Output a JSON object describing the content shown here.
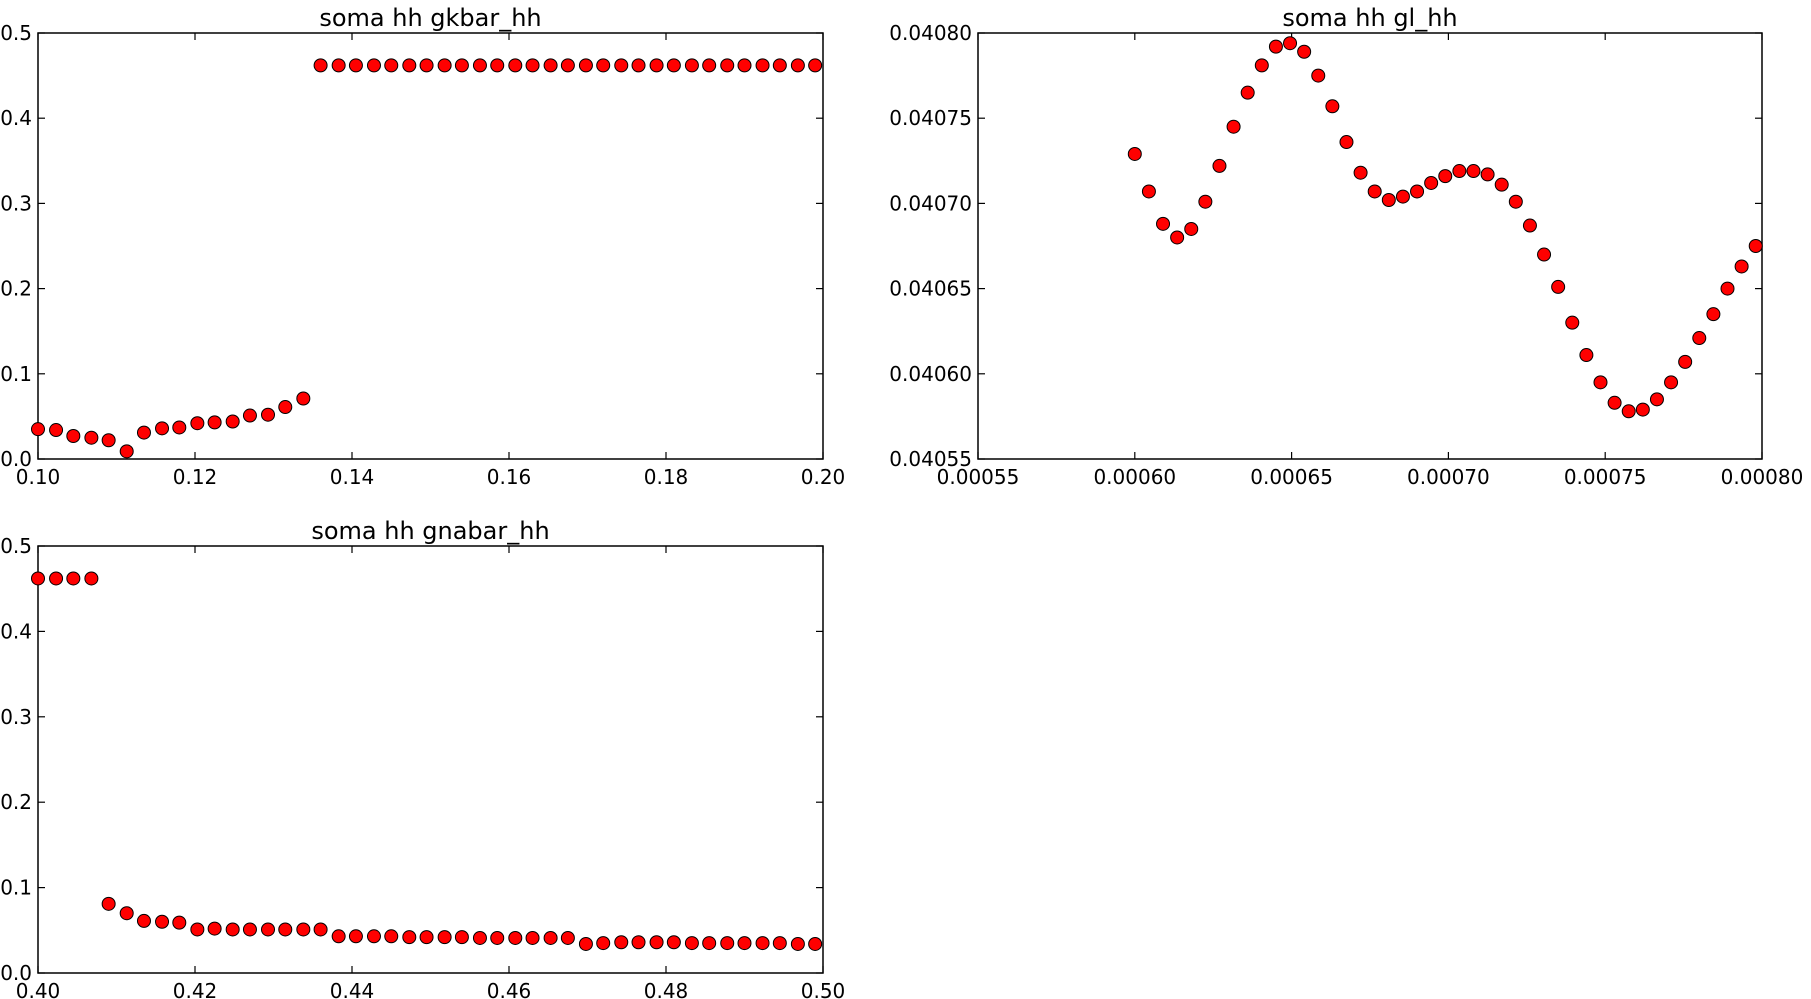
{
  "colors": {
    "marker_fill": "#ff0000",
    "marker_edge": "#000000",
    "background": "#ffffff"
  },
  "chart_data": [
    {
      "type": "scatter",
      "title": "soma hh gkbar_hh",
      "xlabel": "",
      "ylabel": "",
      "xlim": [
        0.1,
        0.2
      ],
      "ylim": [
        0.0,
        0.5
      ],
      "xticks": [
        "0.10",
        "0.12",
        "0.14",
        "0.16",
        "0.18",
        "0.20"
      ],
      "yticks": [
        "0.0",
        "0.1",
        "0.2",
        "0.3",
        "0.4",
        "0.5"
      ],
      "grid": false,
      "x": [
        0.1,
        0.1023,
        0.1045,
        0.1068,
        0.109,
        0.1113,
        0.1135,
        0.1158,
        0.118,
        0.1203,
        0.1225,
        0.1248,
        0.127,
        0.1293,
        0.1315,
        0.1338,
        0.136,
        0.1383,
        0.1405,
        0.1428,
        0.145,
        0.1473,
        0.1495,
        0.1518,
        0.154,
        0.1563,
        0.1585,
        0.1608,
        0.163,
        0.1653,
        0.1675,
        0.1698,
        0.172,
        0.1743,
        0.1765,
        0.1788,
        0.181,
        0.1833,
        0.1855,
        0.1878,
        0.19,
        0.1923,
        0.1945,
        0.1968,
        0.199
      ],
      "y": [
        0.035,
        0.034,
        0.027,
        0.025,
        0.022,
        0.009,
        0.031,
        0.036,
        0.037,
        0.042,
        0.043,
        0.044,
        0.051,
        0.052,
        0.061,
        0.071,
        0.462,
        0.462,
        0.462,
        0.462,
        0.462,
        0.462,
        0.462,
        0.462,
        0.462,
        0.462,
        0.462,
        0.462,
        0.462,
        0.462,
        0.462,
        0.462,
        0.462,
        0.462,
        0.462,
        0.462,
        0.462,
        0.462,
        0.462,
        0.462,
        0.462,
        0.462,
        0.462,
        0.462,
        0.462
      ]
    },
    {
      "type": "scatter",
      "title": "soma hh gl_hh",
      "xlabel": "",
      "ylabel": "",
      "xlim": [
        0.00055,
        0.0008
      ],
      "ylim": [
        0.04055,
        0.0408
      ],
      "xticks": [
        "0.00055",
        "0.00060",
        "0.00065",
        "0.00070",
        "0.00075",
        "0.00080"
      ],
      "yticks": [
        "0.04055",
        "0.04060",
        "0.04065",
        "0.04070",
        "0.04075",
        "0.04080"
      ],
      "grid": false,
      "x": [
        0.0006,
        0.0006045,
        0.000609,
        0.0006135,
        0.000618,
        0.0006225,
        0.000627,
        0.0006315,
        0.000636,
        0.0006405,
        0.000645,
        0.0006495,
        0.000654,
        0.0006585,
        0.000663,
        0.0006675,
        0.000672,
        0.0006765,
        0.000681,
        0.0006855,
        0.00069,
        0.0006945,
        0.000699,
        0.0007035,
        0.000708,
        0.0007125,
        0.000717,
        0.0007215,
        0.000726,
        0.0007305,
        0.000735,
        0.0007395,
        0.000744,
        0.0007485,
        0.000753,
        0.0007575,
        0.000762,
        0.0007665,
        0.000771,
        0.0007755,
        0.00078,
        0.0007845,
        0.000789,
        0.0007935,
        0.000798
      ],
      "y": [
        0.040729,
        0.040707,
        0.040688,
        0.04068,
        0.040685,
        0.040701,
        0.040722,
        0.040745,
        0.040765,
        0.040781,
        0.040792,
        0.040794,
        0.040789,
        0.040775,
        0.040757,
        0.040736,
        0.040718,
        0.040707,
        0.040702,
        0.040704,
        0.040707,
        0.040712,
        0.040716,
        0.040719,
        0.040719,
        0.040717,
        0.040711,
        0.040701,
        0.040687,
        0.04067,
        0.040651,
        0.04063,
        0.040611,
        0.040595,
        0.040583,
        0.040578,
        0.040579,
        0.040585,
        0.040595,
        0.040607,
        0.040621,
        0.040635,
        0.04065,
        0.040663,
        0.040675
      ]
    },
    {
      "type": "scatter",
      "title": "soma hh gnabar_hh",
      "xlabel": "",
      "ylabel": "",
      "xlim": [
        0.4,
        0.5
      ],
      "ylim": [
        0.0,
        0.5
      ],
      "xticks": [
        "0.40",
        "0.42",
        "0.44",
        "0.46",
        "0.48",
        "0.50"
      ],
      "yticks": [
        "0.0",
        "0.1",
        "0.2",
        "0.3",
        "0.4",
        "0.5"
      ],
      "grid": false,
      "x": [
        0.4,
        0.4023,
        0.4045,
        0.4068,
        0.409,
        0.4113,
        0.4135,
        0.4158,
        0.418,
        0.4203,
        0.4225,
        0.4248,
        0.427,
        0.4293,
        0.4315,
        0.4338,
        0.436,
        0.4383,
        0.4405,
        0.4428,
        0.445,
        0.4473,
        0.4495,
        0.4518,
        0.454,
        0.4563,
        0.4585,
        0.4608,
        0.463,
        0.4653,
        0.4675,
        0.4698,
        0.472,
        0.4743,
        0.4765,
        0.4788,
        0.481,
        0.4833,
        0.4855,
        0.4878,
        0.49,
        0.4923,
        0.4945,
        0.4968,
        0.499
      ],
      "y": [
        0.462,
        0.462,
        0.462,
        0.462,
        0.081,
        0.07,
        0.061,
        0.06,
        0.059,
        0.051,
        0.052,
        0.051,
        0.051,
        0.051,
        0.051,
        0.051,
        0.051,
        0.043,
        0.043,
        0.043,
        0.043,
        0.042,
        0.042,
        0.042,
        0.042,
        0.041,
        0.041,
        0.041,
        0.041,
        0.041,
        0.041,
        0.034,
        0.035,
        0.036,
        0.036,
        0.036,
        0.036,
        0.035,
        0.035,
        0.035,
        0.035,
        0.035,
        0.035,
        0.034,
        0.034
      ]
    }
  ]
}
